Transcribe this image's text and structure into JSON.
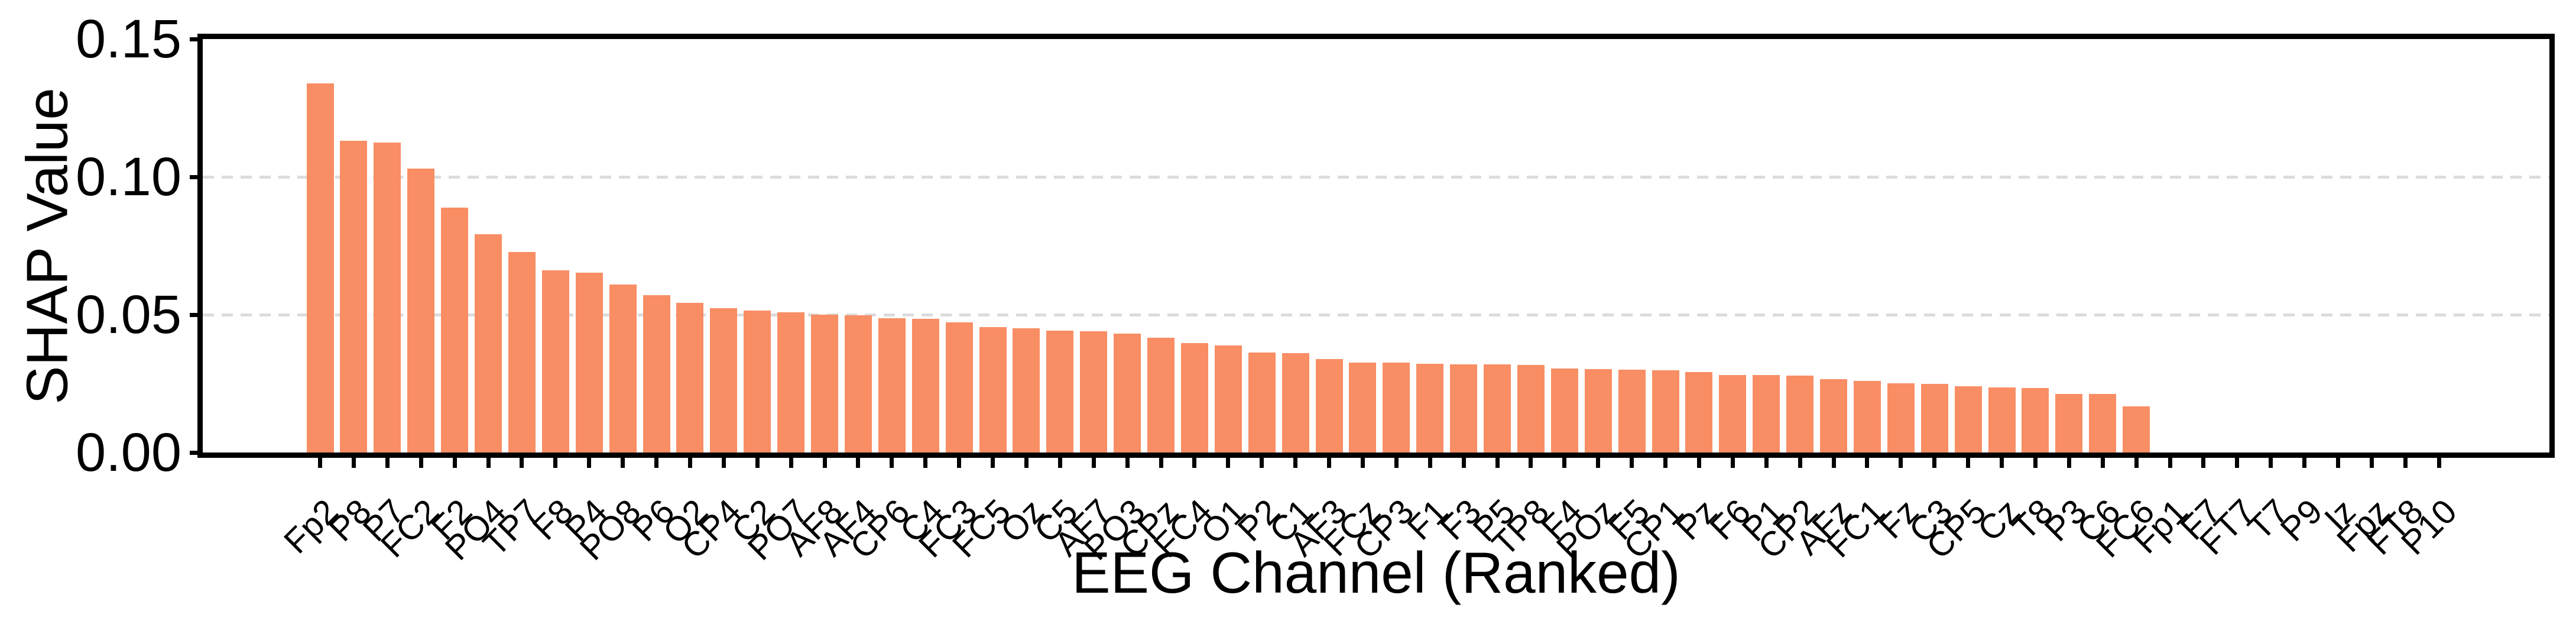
{
  "chart_data": {
    "type": "bar",
    "title": "",
    "xlabel": "EEG Channel (Ranked)",
    "ylabel": "SHAP Value",
    "ylim": [
      0,
      0.15
    ],
    "ytick_values": [
      0.0,
      0.05,
      0.1,
      0.15
    ],
    "ytick_labels": [
      "0.00",
      "0.05",
      "0.10",
      "0.15"
    ],
    "gridline_values": [
      0.05,
      0.1
    ],
    "grid_style": "dashed",
    "legend": "none",
    "bar_color": "#F98D64",
    "grid_color": "#DCDCDC",
    "axis_color": "#000000",
    "categories": [
      "Fp2",
      "P8",
      "P7",
      "FC2",
      "F2",
      "PO4",
      "TP7",
      "F8",
      "P4",
      "PO8",
      "P6",
      "O2",
      "CP4",
      "C2",
      "PO7",
      "AF8",
      "AF4",
      "CP6",
      "C4",
      "FC3",
      "FC5",
      "Oz",
      "C5",
      "AF7",
      "PO3",
      "CPz",
      "FC4",
      "O1",
      "P2",
      "C1",
      "AF3",
      "FCz",
      "CP3",
      "F1",
      "F3",
      "P5",
      "TP8",
      "F4",
      "POz",
      "F5",
      "CP1",
      "Pz",
      "F6",
      "P1",
      "CP2",
      "AFz",
      "FC1",
      "Fz",
      "C3",
      "CP5",
      "Cz",
      "T8",
      "P3",
      "C6",
      "FC6",
      "Fp1",
      "F7",
      "FT7",
      "T7",
      "P9",
      "Iz",
      "Fpz",
      "FT8",
      "P10"
    ],
    "values": [
      0.134,
      0.113,
      0.1124,
      0.1031,
      0.0888,
      0.0792,
      0.0728,
      0.066,
      0.0652,
      0.061,
      0.057,
      0.0544,
      0.0523,
      0.0515,
      0.0508,
      0.05,
      0.0498,
      0.0488,
      0.0486,
      0.0472,
      0.0454,
      0.0451,
      0.0442,
      0.0441,
      0.0432,
      0.0416,
      0.0398,
      0.0388,
      0.0362,
      0.0361,
      0.034,
      0.0327,
      0.0326,
      0.0322,
      0.032,
      0.0319,
      0.0317,
      0.0305,
      0.0303,
      0.03,
      0.0299,
      0.0291,
      0.0282,
      0.0281,
      0.028,
      0.0266,
      0.0259,
      0.0252,
      0.0249,
      0.0241,
      0.0237,
      0.0234,
      0.0213,
      0.0212,
      0.0168,
      0,
      0,
      0,
      0,
      0,
      0,
      0,
      0,
      0
    ]
  }
}
